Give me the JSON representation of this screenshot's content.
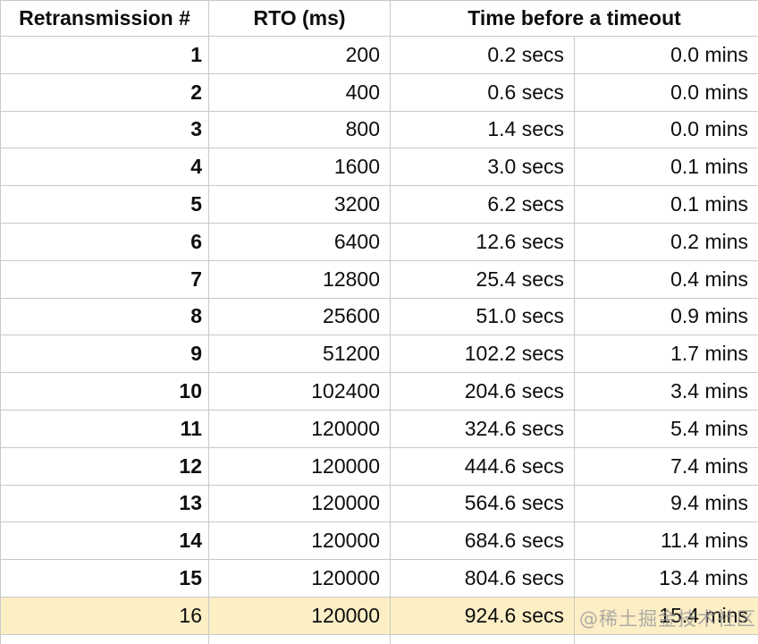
{
  "table": {
    "headers": {
      "retransmission": "Retransmission #",
      "rto": "RTO (ms)",
      "time_before_timeout": "Time before a timeout"
    },
    "rows": [
      {
        "n": "1",
        "rto": "200",
        "secs": "0.2 secs",
        "mins": "0.0 mins"
      },
      {
        "n": "2",
        "rto": "400",
        "secs": "0.6 secs",
        "mins": "0.0 mins"
      },
      {
        "n": "3",
        "rto": "800",
        "secs": "1.4 secs",
        "mins": "0.0 mins"
      },
      {
        "n": "4",
        "rto": "1600",
        "secs": "3.0 secs",
        "mins": "0.1 mins"
      },
      {
        "n": "5",
        "rto": "3200",
        "secs": "6.2 secs",
        "mins": "0.1 mins"
      },
      {
        "n": "6",
        "rto": "6400",
        "secs": "12.6 secs",
        "mins": "0.2 mins"
      },
      {
        "n": "7",
        "rto": "12800",
        "secs": "25.4 secs",
        "mins": "0.4 mins"
      },
      {
        "n": "8",
        "rto": "25600",
        "secs": "51.0 secs",
        "mins": "0.9 mins"
      },
      {
        "n": "9",
        "rto": "51200",
        "secs": "102.2 secs",
        "mins": "1.7 mins"
      },
      {
        "n": "10",
        "rto": "102400",
        "secs": "204.6 secs",
        "mins": "3.4 mins"
      },
      {
        "n": "11",
        "rto": "120000",
        "secs": "324.6 secs",
        "mins": "5.4 mins"
      },
      {
        "n": "12",
        "rto": "120000",
        "secs": "444.6 secs",
        "mins": "7.4 mins"
      },
      {
        "n": "13",
        "rto": "120000",
        "secs": "564.6 secs",
        "mins": "9.4 mins"
      },
      {
        "n": "14",
        "rto": "120000",
        "secs": "684.6 secs",
        "mins": "11.4 mins"
      },
      {
        "n": "15",
        "rto": "120000",
        "secs": "804.6 secs",
        "mins": "13.4 mins"
      },
      {
        "n": "16",
        "rto": "120000",
        "secs": "924.6 secs",
        "mins": "15.4 mins"
      }
    ]
  },
  "watermark": {
    "text": "@稀土掘金技术社区"
  },
  "colors": {
    "border": "#c9c9c9",
    "highlight_row": "#fceec5",
    "text": "#0e0e0e",
    "watermark_color": "#9a9a9a",
    "bg": "#ffffff"
  }
}
